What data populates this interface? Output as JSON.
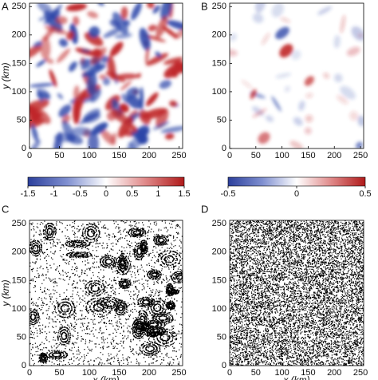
{
  "chart_data": [
    {
      "panel": "A",
      "type": "heatmap",
      "xlim": [
        0,
        256
      ],
      "ylim": [
        0,
        256
      ],
      "xticks": [
        0,
        50,
        100,
        150,
        200,
        250
      ],
      "yticks": [
        0,
        50,
        100,
        150,
        200,
        250
      ],
      "ylabel": "y (km)",
      "colorbar": {
        "lim": [
          -1.5,
          1.5
        ],
        "ticks": [
          -1.5,
          -1,
          -0.5,
          0,
          0.5,
          1,
          1.5
        ]
      }
    },
    {
      "panel": "B",
      "type": "heatmap",
      "xlim": [
        0,
        256
      ],
      "ylim": [
        0,
        256
      ],
      "xticks": [
        0,
        50,
        100,
        150,
        200,
        250
      ],
      "yticks": [
        0,
        50,
        100,
        150,
        200,
        250
      ],
      "colorbar": {
        "lim": [
          -0.5,
          0.5
        ],
        "ticks": [
          -0.5,
          0,
          0.5
        ]
      }
    },
    {
      "panel": "C",
      "type": "scatter",
      "xlim": [
        0,
        256
      ],
      "ylim": [
        0,
        256
      ],
      "xticks": [
        0,
        50,
        100,
        150,
        200,
        250
      ],
      "yticks": [
        0,
        50,
        100,
        150,
        200,
        250
      ],
      "ylabel": "y (km)",
      "xlabel": "x (km)"
    },
    {
      "panel": "D",
      "type": "scatter",
      "xlim": [
        0,
        256
      ],
      "ylim": [
        0,
        256
      ],
      "xticks": [
        0,
        50,
        100,
        150,
        200,
        250
      ],
      "yticks": [
        0,
        50,
        100,
        150,
        200,
        250
      ],
      "xlabel": "x (km)"
    }
  ]
}
